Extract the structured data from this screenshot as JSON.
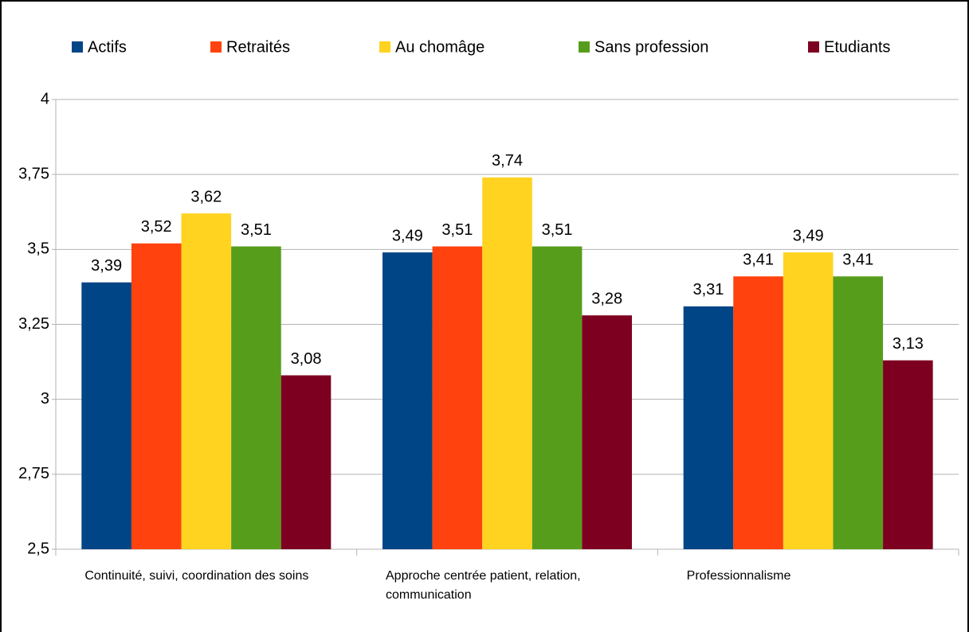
{
  "chart_data": {
    "type": "bar",
    "categories": [
      "Continuité, suivi, coordination des soins",
      "Approche centrée patient, relation, communication",
      "Professionnalisme"
    ],
    "series": [
      {
        "name": "Actifs",
        "color": "#004586",
        "values": [
          3.39,
          3.49,
          3.31
        ],
        "value_labels": [
          "3,39",
          "3,49",
          "3,31"
        ]
      },
      {
        "name": "Retraités",
        "color": "#ff420e",
        "values": [
          3.52,
          3.51,
          3.41
        ],
        "value_labels": [
          "3,52",
          "3,51",
          "3,41"
        ]
      },
      {
        "name": "Au chomâge",
        "color": "#ffd320",
        "values": [
          3.62,
          3.74,
          3.49
        ],
        "value_labels": [
          "3,62",
          "3,74",
          "3,49"
        ]
      },
      {
        "name": "Sans profession",
        "color": "#579d1c",
        "values": [
          3.51,
          3.51,
          3.41
        ],
        "value_labels": [
          "3,51",
          "3,51",
          "3,41"
        ]
      },
      {
        "name": "Etudiants",
        "color": "#7e0021",
        "values": [
          3.08,
          3.28,
          3.13
        ],
        "value_labels": [
          "3,08",
          "3,28",
          "3,13"
        ]
      }
    ],
    "ylim": [
      2.5,
      4
    ],
    "yticks": [
      {
        "value": 2.5,
        "label": "2,5"
      },
      {
        "value": 2.75,
        "label": "2,75"
      },
      3,
      {
        "value": 3.25,
        "label": "3,25"
      },
      {
        "value": 3.5,
        "label": "3,5"
      },
      {
        "value": 3.75,
        "label": "3,75"
      },
      4
    ],
    "grid": true,
    "legend": "top"
  }
}
